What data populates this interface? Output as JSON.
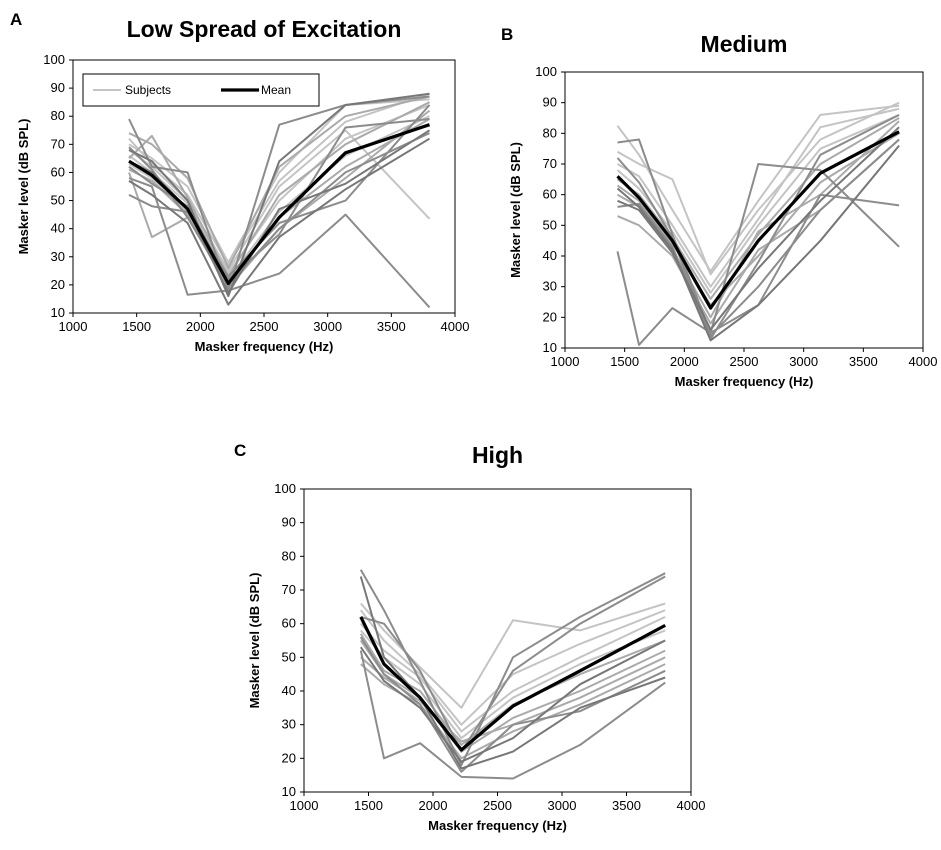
{
  "chart_data": [
    {
      "type": "line",
      "panel_letter": "A",
      "title": "Low Spread of Excitation",
      "xlabel": "Masker frequency (Hz)",
      "ylabel": "Masker level (dB SPL)",
      "xlim": [
        1000,
        4000
      ],
      "ylim": [
        10,
        100
      ],
      "xticks": [
        1000,
        1500,
        2000,
        2500,
        3000,
        3500,
        4000
      ],
      "yticks": [
        10,
        20,
        30,
        40,
        50,
        60,
        70,
        80,
        90,
        100
      ],
      "grid": false,
      "legend": {
        "placement": "top-left",
        "entries": [
          "Subjects",
          "Mean"
        ]
      },
      "x": [
        1440,
        1620,
        1900,
        2220,
        2620,
        3140,
        3800
      ],
      "mean": {
        "name": "Mean",
        "color": "#000000",
        "values": [
          64,
          59,
          47,
          20.5,
          44,
          67,
          77
        ]
      },
      "series": [
        {
          "name": "Subjects",
          "color": "#c4c4c4",
          "values": [
            72,
            63,
            52,
            27,
            57,
            78,
            88
          ]
        },
        {
          "color": "#c4c4c4",
          "values": [
            70,
            65,
            55,
            28,
            60,
            84,
            86
          ]
        },
        {
          "color": "#c4c4c4",
          "values": [
            68,
            62,
            50,
            25,
            55,
            75,
            43.5
          ]
        },
        {
          "color": "#c4c4c4",
          "values": [
            66,
            60,
            49,
            24,
            50,
            72,
            84
          ]
        },
        {
          "color": "#c4c4c4",
          "values": [
            63,
            58,
            46,
            22,
            46,
            66,
            80
          ]
        },
        {
          "color": "#aaaaaa",
          "values": [
            74,
            70,
            58,
            26,
            62,
            80,
            87
          ]
        },
        {
          "color": "#aaaaaa",
          "values": [
            61,
            57,
            45,
            21,
            44,
            62,
            79
          ]
        },
        {
          "color": "#aaaaaa",
          "values": [
            60,
            37,
            44,
            19,
            40,
            58,
            82
          ]
        },
        {
          "color": "#aaaaaa",
          "values": [
            65,
            73,
            51,
            23,
            52,
            70,
            85
          ]
        },
        {
          "color": "#8c8c8c",
          "values": [
            79,
            62,
            60,
            18,
            77,
            84,
            87
          ]
        },
        {
          "color": "#8c8c8c",
          "values": [
            52,
            48,
            46,
            23,
            42,
            50,
            84
          ]
        },
        {
          "color": "#8c8c8c",
          "values": [
            62,
            56,
            48,
            22,
            38,
            76,
            79
          ]
        },
        {
          "color": "#8c8c8c",
          "values": [
            69,
            61,
            44,
            20,
            40,
            60,
            74
          ]
        },
        {
          "color": "#8c8c8c",
          "values": [
            58,
            55,
            16.5,
            18,
            24,
            45,
            12
          ]
        },
        {
          "color": "#777777",
          "values": [
            57,
            52,
            42,
            13,
            37,
            54,
            72
          ]
        },
        {
          "color": "#777777",
          "values": [
            68,
            64,
            50,
            16,
            64,
            84,
            88
          ]
        },
        {
          "color": "#777777",
          "values": [
            64,
            60,
            47,
            17,
            47,
            56,
            75
          ]
        }
      ]
    },
    {
      "type": "line",
      "panel_letter": "B",
      "title": "Medium",
      "xlabel": "Masker frequency (Hz)",
      "ylabel": "Masker level (dB SPL)",
      "xlim": [
        1000,
        4000
      ],
      "ylim": [
        10,
        100
      ],
      "xticks": [
        1000,
        1500,
        2000,
        2500,
        3000,
        3500,
        4000
      ],
      "yticks": [
        10,
        20,
        30,
        40,
        50,
        60,
        70,
        80,
        90,
        100
      ],
      "grid": false,
      "x": [
        1440,
        1620,
        1900,
        2220,
        2620,
        3140,
        3800
      ],
      "mean": {
        "name": "Mean",
        "color": "#000000",
        "values": [
          66,
          59,
          45,
          23,
          45,
          67,
          80.5
        ]
      },
      "series": [
        {
          "color": "#c4c4c4",
          "values": [
            82.5,
            73,
            55,
            35,
            58,
            86,
            89
          ]
        },
        {
          "color": "#c4c4c4",
          "values": [
            74,
            70,
            65,
            34,
            55,
            78,
            90
          ]
        },
        {
          "color": "#c4c4c4",
          "values": [
            70,
            66,
            50,
            30,
            52,
            82,
            88
          ]
        },
        {
          "color": "#c4c4c4",
          "values": [
            68,
            62,
            48,
            28,
            50,
            75,
            86
          ]
        },
        {
          "color": "#aaaaaa",
          "values": [
            65,
            60,
            46,
            26,
            47,
            70,
            85
          ]
        },
        {
          "color": "#aaaaaa",
          "values": [
            63,
            58,
            44,
            24,
            40,
            64,
            80
          ]
        },
        {
          "color": "#aaaaaa",
          "values": [
            60,
            56,
            42,
            20,
            48,
            60,
            84
          ]
        },
        {
          "color": "#aaaaaa",
          "values": [
            53,
            50,
            40,
            18,
            42,
            55,
            78
          ]
        },
        {
          "color": "#8c8c8c",
          "values": [
            77,
            78,
            47,
            15,
            70,
            68,
            43
          ]
        },
        {
          "color": "#8c8c8c",
          "values": [
            41.5,
            11,
            23,
            15,
            24,
            60,
            56.5
          ]
        },
        {
          "color": "#8c8c8c",
          "values": [
            72,
            64,
            46,
            13,
            38,
            73,
            86
          ]
        },
        {
          "color": "#8c8c8c",
          "values": [
            56,
            57,
            43,
            14,
            30,
            55,
            78
          ]
        },
        {
          "color": "#777777",
          "values": [
            62,
            56,
            42,
            12.5,
            24,
            45,
            76
          ]
        },
        {
          "color": "#777777",
          "values": [
            58,
            55,
            41,
            16,
            36,
            58,
            82
          ]
        }
      ]
    },
    {
      "type": "line",
      "panel_letter": "C",
      "title": "High",
      "xlabel": "Masker frequency (Hz)",
      "ylabel": "Masker level (dB SPL)",
      "xlim": [
        1000,
        4000
      ],
      "ylim": [
        10,
        100
      ],
      "xticks": [
        1000,
        1500,
        2000,
        2500,
        3000,
        3500,
        4000
      ],
      "yticks": [
        10,
        20,
        30,
        40,
        50,
        60,
        70,
        80,
        90,
        100
      ],
      "grid": false,
      "x": [
        1440,
        1620,
        1900,
        2220,
        2620,
        3140,
        3800
      ],
      "mean": {
        "name": "Mean",
        "color": "#000000",
        "values": [
          62,
          48,
          38,
          22.5,
          35.5,
          46,
          59.5
        ]
      },
      "series": [
        {
          "color": "#c4c4c4",
          "values": [
            66,
            58,
            47,
            35,
            61,
            58,
            66
          ]
        },
        {
          "color": "#c4c4c4",
          "values": [
            64,
            55,
            45,
            30,
            45,
            54,
            64
          ]
        },
        {
          "color": "#c4c4c4",
          "values": [
            60,
            52,
            44,
            28,
            40,
            50,
            62
          ]
        },
        {
          "color": "#c4c4c4",
          "values": [
            58,
            50,
            42,
            26,
            38,
            48,
            58
          ]
        },
        {
          "color": "#aaaaaa",
          "values": [
            57,
            46,
            40,
            24,
            36,
            45,
            55
          ]
        },
        {
          "color": "#aaaaaa",
          "values": [
            55,
            45,
            38,
            22,
            32,
            40,
            52
          ]
        },
        {
          "color": "#aaaaaa",
          "values": [
            50,
            44,
            37,
            25,
            30,
            38,
            50
          ]
        },
        {
          "color": "#aaaaaa",
          "values": [
            48,
            42,
            36,
            20,
            28,
            36,
            48
          ]
        },
        {
          "color": "#8c8c8c",
          "values": [
            76,
            64,
            43,
            18,
            50,
            62,
            75
          ]
        },
        {
          "color": "#8c8c8c",
          "values": [
            52,
            20,
            24.5,
            14.5,
            14,
            24,
            42.5
          ]
        },
        {
          "color": "#8c8c8c",
          "values": [
            62,
            60,
            46,
            22,
            46,
            60,
            74
          ]
        },
        {
          "color": "#8c8c8c",
          "values": [
            56,
            45,
            36,
            16,
            30,
            34,
            46
          ]
        },
        {
          "color": "#777777",
          "values": [
            74,
            50,
            38,
            17,
            22,
            35,
            44
          ]
        },
        {
          "color": "#777777",
          "values": [
            53,
            43,
            35,
            19,
            26,
            42,
            55
          ]
        }
      ]
    }
  ]
}
